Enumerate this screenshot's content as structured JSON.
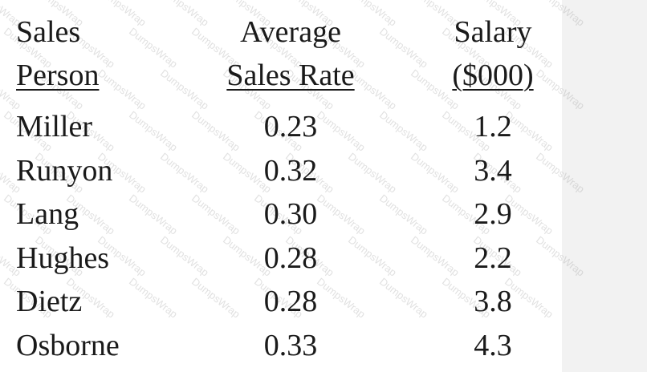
{
  "watermark": "DumpsWrap",
  "header": {
    "col1": [
      "Sales",
      "Person"
    ],
    "col2": [
      "Average",
      "Sales Rate"
    ],
    "col3": [
      "Salary",
      "($000)"
    ]
  },
  "rows": [
    {
      "name": "Miller",
      "rate": "0.23",
      "salary": "1.2"
    },
    {
      "name": "Runyon",
      "rate": "0.32",
      "salary": "3.4"
    },
    {
      "name": "Lang",
      "rate": "0.30",
      "salary": "2.9"
    },
    {
      "name": "Hughes",
      "rate": "0.28",
      "salary": "2.2"
    },
    {
      "name": "Dietz",
      "rate": "0.28",
      "salary": "3.8"
    },
    {
      "name": "Osborne",
      "rate": "0.33",
      "salary": "4.3"
    }
  ]
}
